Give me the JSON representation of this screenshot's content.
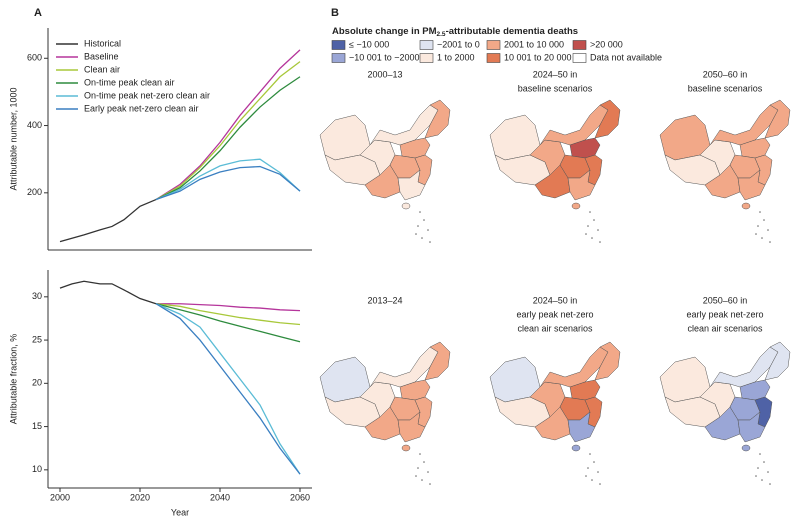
{
  "panel_labels": [
    "A",
    "B"
  ],
  "chart_data": [
    {
      "type": "line",
      "ylabel": "Attributable number, 1000",
      "x": [
        2000,
        2003,
        2006,
        2010,
        2013,
        2016,
        2020,
        2024,
        2030,
        2035,
        2040,
        2045,
        2050,
        2055,
        2060
      ],
      "xlim": [
        1997,
        2063
      ],
      "ylim": [
        30,
        690
      ],
      "yticks": [
        200,
        400,
        600
      ],
      "legend": "top-left",
      "series": [
        {
          "name": "Historical",
          "color": "#333333",
          "values": [
            55,
            65,
            75,
            90,
            100,
            120,
            160,
            180,
            null,
            null,
            null,
            null,
            null,
            null,
            null
          ]
        },
        {
          "name": "Baseline",
          "color": "#b5359b",
          "values": [
            null,
            null,
            null,
            null,
            null,
            null,
            null,
            180,
            225,
            280,
            350,
            430,
            500,
            570,
            625
          ]
        },
        {
          "name": "Clean air",
          "color": "#a8c83a",
          "values": [
            null,
            null,
            null,
            null,
            null,
            null,
            null,
            180,
            220,
            275,
            340,
            415,
            480,
            545,
            590
          ]
        },
        {
          "name": "On-time peak clean air",
          "color": "#2e8b3e",
          "values": [
            null,
            null,
            null,
            null,
            null,
            null,
            null,
            180,
            215,
            265,
            325,
            395,
            455,
            505,
            545
          ]
        },
        {
          "name": "On-time peak net-zero clean air",
          "color": "#5bbcd6",
          "values": [
            null,
            null,
            null,
            null,
            null,
            null,
            null,
            180,
            210,
            250,
            280,
            295,
            300,
            260,
            205
          ]
        },
        {
          "name": "Early peak net-zero clean air",
          "color": "#3a7fc1",
          "values": [
            null,
            null,
            null,
            null,
            null,
            null,
            null,
            180,
            205,
            240,
            262,
            275,
            278,
            255,
            205
          ]
        }
      ]
    },
    {
      "type": "line",
      "ylabel": "Attributable fraction, %",
      "xlabel": "Year",
      "x": [
        2000,
        2003,
        2006,
        2010,
        2013,
        2016,
        2020,
        2024,
        2030,
        2035,
        2040,
        2045,
        2050,
        2055,
        2060
      ],
      "xlim": [
        1997,
        2063
      ],
      "xticks": [
        2000,
        2020,
        2040,
        2060
      ],
      "ylim": [
        7.9,
        33.1
      ],
      "yticks": [
        10,
        15,
        20,
        25,
        30
      ],
      "series": [
        {
          "color": "#333333",
          "values": [
            31,
            31.5,
            31.8,
            31.5,
            31.5,
            30.8,
            29.8,
            29.2,
            null,
            null,
            null,
            null,
            null,
            null,
            null
          ]
        },
        {
          "color": "#b5359b",
          "values": [
            null,
            null,
            null,
            null,
            null,
            null,
            null,
            29.2,
            29.2,
            29.1,
            29.0,
            28.8,
            28.7,
            28.5,
            28.4
          ]
        },
        {
          "color": "#a8c83a",
          "values": [
            null,
            null,
            null,
            null,
            null,
            null,
            null,
            29.2,
            28.9,
            28.4,
            28.0,
            27.6,
            27.3,
            27.0,
            26.8
          ]
        },
        {
          "color": "#2e8b3e",
          "values": [
            null,
            null,
            null,
            null,
            null,
            null,
            null,
            29.2,
            28.5,
            27.9,
            27.2,
            26.6,
            26.0,
            25.4,
            24.8
          ]
        },
        {
          "color": "#5bbcd6",
          "values": [
            null,
            null,
            null,
            null,
            null,
            null,
            null,
            29.2,
            28.0,
            26.5,
            23.5,
            20.5,
            17.5,
            13.0,
            9.5
          ]
        },
        {
          "color": "#3a7fc1",
          "values": [
            null,
            null,
            null,
            null,
            null,
            null,
            null,
            29.2,
            27.5,
            25.0,
            22.0,
            19.0,
            16.0,
            12.5,
            9.5
          ]
        }
      ]
    }
  ],
  "map_legend": {
    "title": [
      "Absolute change in PM",
      "2.5",
      "-attributable dementia deaths"
    ],
    "items": [
      {
        "label": "≤ −10 000",
        "color": "#4f62a6"
      },
      {
        "label": "−2001 to 0",
        "color": "#dfe4f1"
      },
      {
        "label": "2001 to 10 000",
        "color": "#f2a888"
      },
      {
        "label": ">20 000",
        "color": "#c0504d"
      },
      {
        "label": "−10 001 to −2000",
        "color": "#9aa6d6"
      },
      {
        "label": "1 to 2000",
        "color": "#fbe9de"
      },
      {
        "label": "10 001 to 20 000",
        "color": "#e27a54"
      },
      {
        "label": "Data not available",
        "color": "#ffffff"
      }
    ]
  },
  "maps": [
    {
      "title": [
        "2000–13"
      ]
    },
    {
      "title": [
        "2024–50 in",
        "baseline scenarios"
      ]
    },
    {
      "title": [
        "2050–60 in",
        "baseline scenarios"
      ]
    },
    {
      "title": [
        "2013–24"
      ]
    },
    {
      "title": [
        "2024–50 in",
        "early peak net-zero",
        "clean air scenarios"
      ]
    },
    {
      "title": [
        "2050–60 in",
        "early peak net-zero",
        "clean air scenarios"
      ]
    }
  ]
}
